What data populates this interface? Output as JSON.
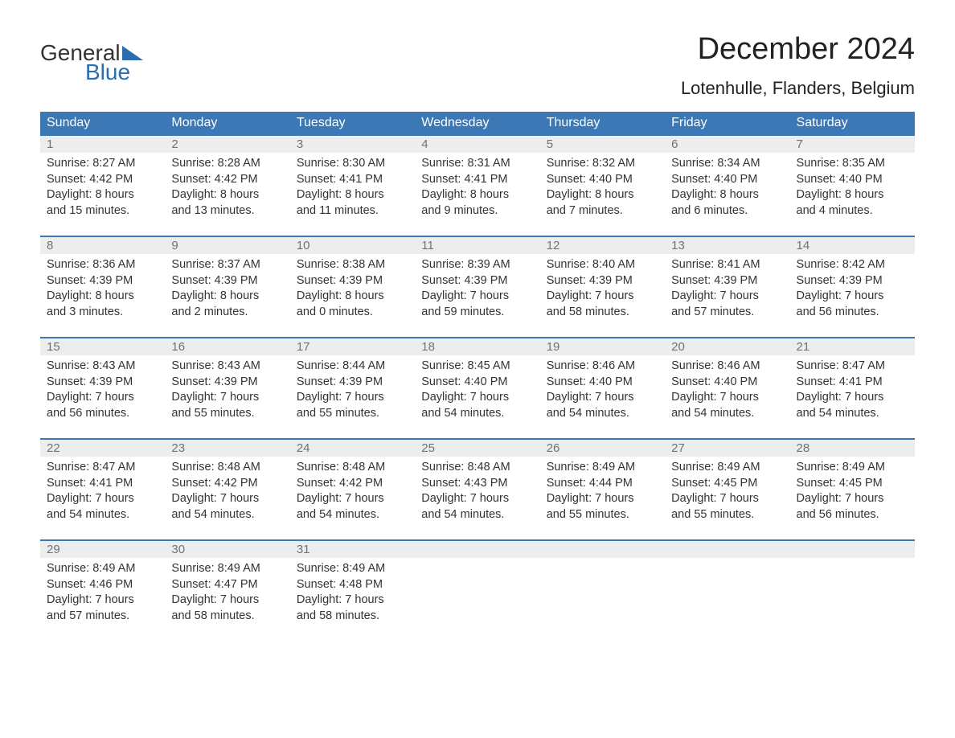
{
  "logo": {
    "word1": "General",
    "word2": "Blue",
    "accent_color": "#2a6db0"
  },
  "title": "December 2024",
  "location": "Lotenhulle, Flanders, Belgium",
  "colors": {
    "header_bg": "#3b78b5",
    "header_text": "#ffffff",
    "daynum_bg": "#eceded",
    "daynum_text": "#6f7377",
    "row_border": "#3b78b5"
  },
  "day_headers": [
    "Sunday",
    "Monday",
    "Tuesday",
    "Wednesday",
    "Thursday",
    "Friday",
    "Saturday"
  ],
  "weeks": [
    [
      {
        "n": "1",
        "sunrise": "Sunrise: 8:27 AM",
        "sunset": "Sunset: 4:42 PM",
        "d1": "Daylight: 8 hours",
        "d2": "and 15 minutes."
      },
      {
        "n": "2",
        "sunrise": "Sunrise: 8:28 AM",
        "sunset": "Sunset: 4:42 PM",
        "d1": "Daylight: 8 hours",
        "d2": "and 13 minutes."
      },
      {
        "n": "3",
        "sunrise": "Sunrise: 8:30 AM",
        "sunset": "Sunset: 4:41 PM",
        "d1": "Daylight: 8 hours",
        "d2": "and 11 minutes."
      },
      {
        "n": "4",
        "sunrise": "Sunrise: 8:31 AM",
        "sunset": "Sunset: 4:41 PM",
        "d1": "Daylight: 8 hours",
        "d2": "and 9 minutes."
      },
      {
        "n": "5",
        "sunrise": "Sunrise: 8:32 AM",
        "sunset": "Sunset: 4:40 PM",
        "d1": "Daylight: 8 hours",
        "d2": "and 7 minutes."
      },
      {
        "n": "6",
        "sunrise": "Sunrise: 8:34 AM",
        "sunset": "Sunset: 4:40 PM",
        "d1": "Daylight: 8 hours",
        "d2": "and 6 minutes."
      },
      {
        "n": "7",
        "sunrise": "Sunrise: 8:35 AM",
        "sunset": "Sunset: 4:40 PM",
        "d1": "Daylight: 8 hours",
        "d2": "and 4 minutes."
      }
    ],
    [
      {
        "n": "8",
        "sunrise": "Sunrise: 8:36 AM",
        "sunset": "Sunset: 4:39 PM",
        "d1": "Daylight: 8 hours",
        "d2": "and 3 minutes."
      },
      {
        "n": "9",
        "sunrise": "Sunrise: 8:37 AM",
        "sunset": "Sunset: 4:39 PM",
        "d1": "Daylight: 8 hours",
        "d2": "and 2 minutes."
      },
      {
        "n": "10",
        "sunrise": "Sunrise: 8:38 AM",
        "sunset": "Sunset: 4:39 PM",
        "d1": "Daylight: 8 hours",
        "d2": "and 0 minutes."
      },
      {
        "n": "11",
        "sunrise": "Sunrise: 8:39 AM",
        "sunset": "Sunset: 4:39 PM",
        "d1": "Daylight: 7 hours",
        "d2": "and 59 minutes."
      },
      {
        "n": "12",
        "sunrise": "Sunrise: 8:40 AM",
        "sunset": "Sunset: 4:39 PM",
        "d1": "Daylight: 7 hours",
        "d2": "and 58 minutes."
      },
      {
        "n": "13",
        "sunrise": "Sunrise: 8:41 AM",
        "sunset": "Sunset: 4:39 PM",
        "d1": "Daylight: 7 hours",
        "d2": "and 57 minutes."
      },
      {
        "n": "14",
        "sunrise": "Sunrise: 8:42 AM",
        "sunset": "Sunset: 4:39 PM",
        "d1": "Daylight: 7 hours",
        "d2": "and 56 minutes."
      }
    ],
    [
      {
        "n": "15",
        "sunrise": "Sunrise: 8:43 AM",
        "sunset": "Sunset: 4:39 PM",
        "d1": "Daylight: 7 hours",
        "d2": "and 56 minutes."
      },
      {
        "n": "16",
        "sunrise": "Sunrise: 8:43 AM",
        "sunset": "Sunset: 4:39 PM",
        "d1": "Daylight: 7 hours",
        "d2": "and 55 minutes."
      },
      {
        "n": "17",
        "sunrise": "Sunrise: 8:44 AM",
        "sunset": "Sunset: 4:39 PM",
        "d1": "Daylight: 7 hours",
        "d2": "and 55 minutes."
      },
      {
        "n": "18",
        "sunrise": "Sunrise: 8:45 AM",
        "sunset": "Sunset: 4:40 PM",
        "d1": "Daylight: 7 hours",
        "d2": "and 54 minutes."
      },
      {
        "n": "19",
        "sunrise": "Sunrise: 8:46 AM",
        "sunset": "Sunset: 4:40 PM",
        "d1": "Daylight: 7 hours",
        "d2": "and 54 minutes."
      },
      {
        "n": "20",
        "sunrise": "Sunrise: 8:46 AM",
        "sunset": "Sunset: 4:40 PM",
        "d1": "Daylight: 7 hours",
        "d2": "and 54 minutes."
      },
      {
        "n": "21",
        "sunrise": "Sunrise: 8:47 AM",
        "sunset": "Sunset: 4:41 PM",
        "d1": "Daylight: 7 hours",
        "d2": "and 54 minutes."
      }
    ],
    [
      {
        "n": "22",
        "sunrise": "Sunrise: 8:47 AM",
        "sunset": "Sunset: 4:41 PM",
        "d1": "Daylight: 7 hours",
        "d2": "and 54 minutes."
      },
      {
        "n": "23",
        "sunrise": "Sunrise: 8:48 AM",
        "sunset": "Sunset: 4:42 PM",
        "d1": "Daylight: 7 hours",
        "d2": "and 54 minutes."
      },
      {
        "n": "24",
        "sunrise": "Sunrise: 8:48 AM",
        "sunset": "Sunset: 4:42 PM",
        "d1": "Daylight: 7 hours",
        "d2": "and 54 minutes."
      },
      {
        "n": "25",
        "sunrise": "Sunrise: 8:48 AM",
        "sunset": "Sunset: 4:43 PM",
        "d1": "Daylight: 7 hours",
        "d2": "and 54 minutes."
      },
      {
        "n": "26",
        "sunrise": "Sunrise: 8:49 AM",
        "sunset": "Sunset: 4:44 PM",
        "d1": "Daylight: 7 hours",
        "d2": "and 55 minutes."
      },
      {
        "n": "27",
        "sunrise": "Sunrise: 8:49 AM",
        "sunset": "Sunset: 4:45 PM",
        "d1": "Daylight: 7 hours",
        "d2": "and 55 minutes."
      },
      {
        "n": "28",
        "sunrise": "Sunrise: 8:49 AM",
        "sunset": "Sunset: 4:45 PM",
        "d1": "Daylight: 7 hours",
        "d2": "and 56 minutes."
      }
    ],
    [
      {
        "n": "29",
        "sunrise": "Sunrise: 8:49 AM",
        "sunset": "Sunset: 4:46 PM",
        "d1": "Daylight: 7 hours",
        "d2": "and 57 minutes."
      },
      {
        "n": "30",
        "sunrise": "Sunrise: 8:49 AM",
        "sunset": "Sunset: 4:47 PM",
        "d1": "Daylight: 7 hours",
        "d2": "and 58 minutes."
      },
      {
        "n": "31",
        "sunrise": "Sunrise: 8:49 AM",
        "sunset": "Sunset: 4:48 PM",
        "d1": "Daylight: 7 hours",
        "d2": "and 58 minutes."
      },
      null,
      null,
      null,
      null
    ]
  ]
}
